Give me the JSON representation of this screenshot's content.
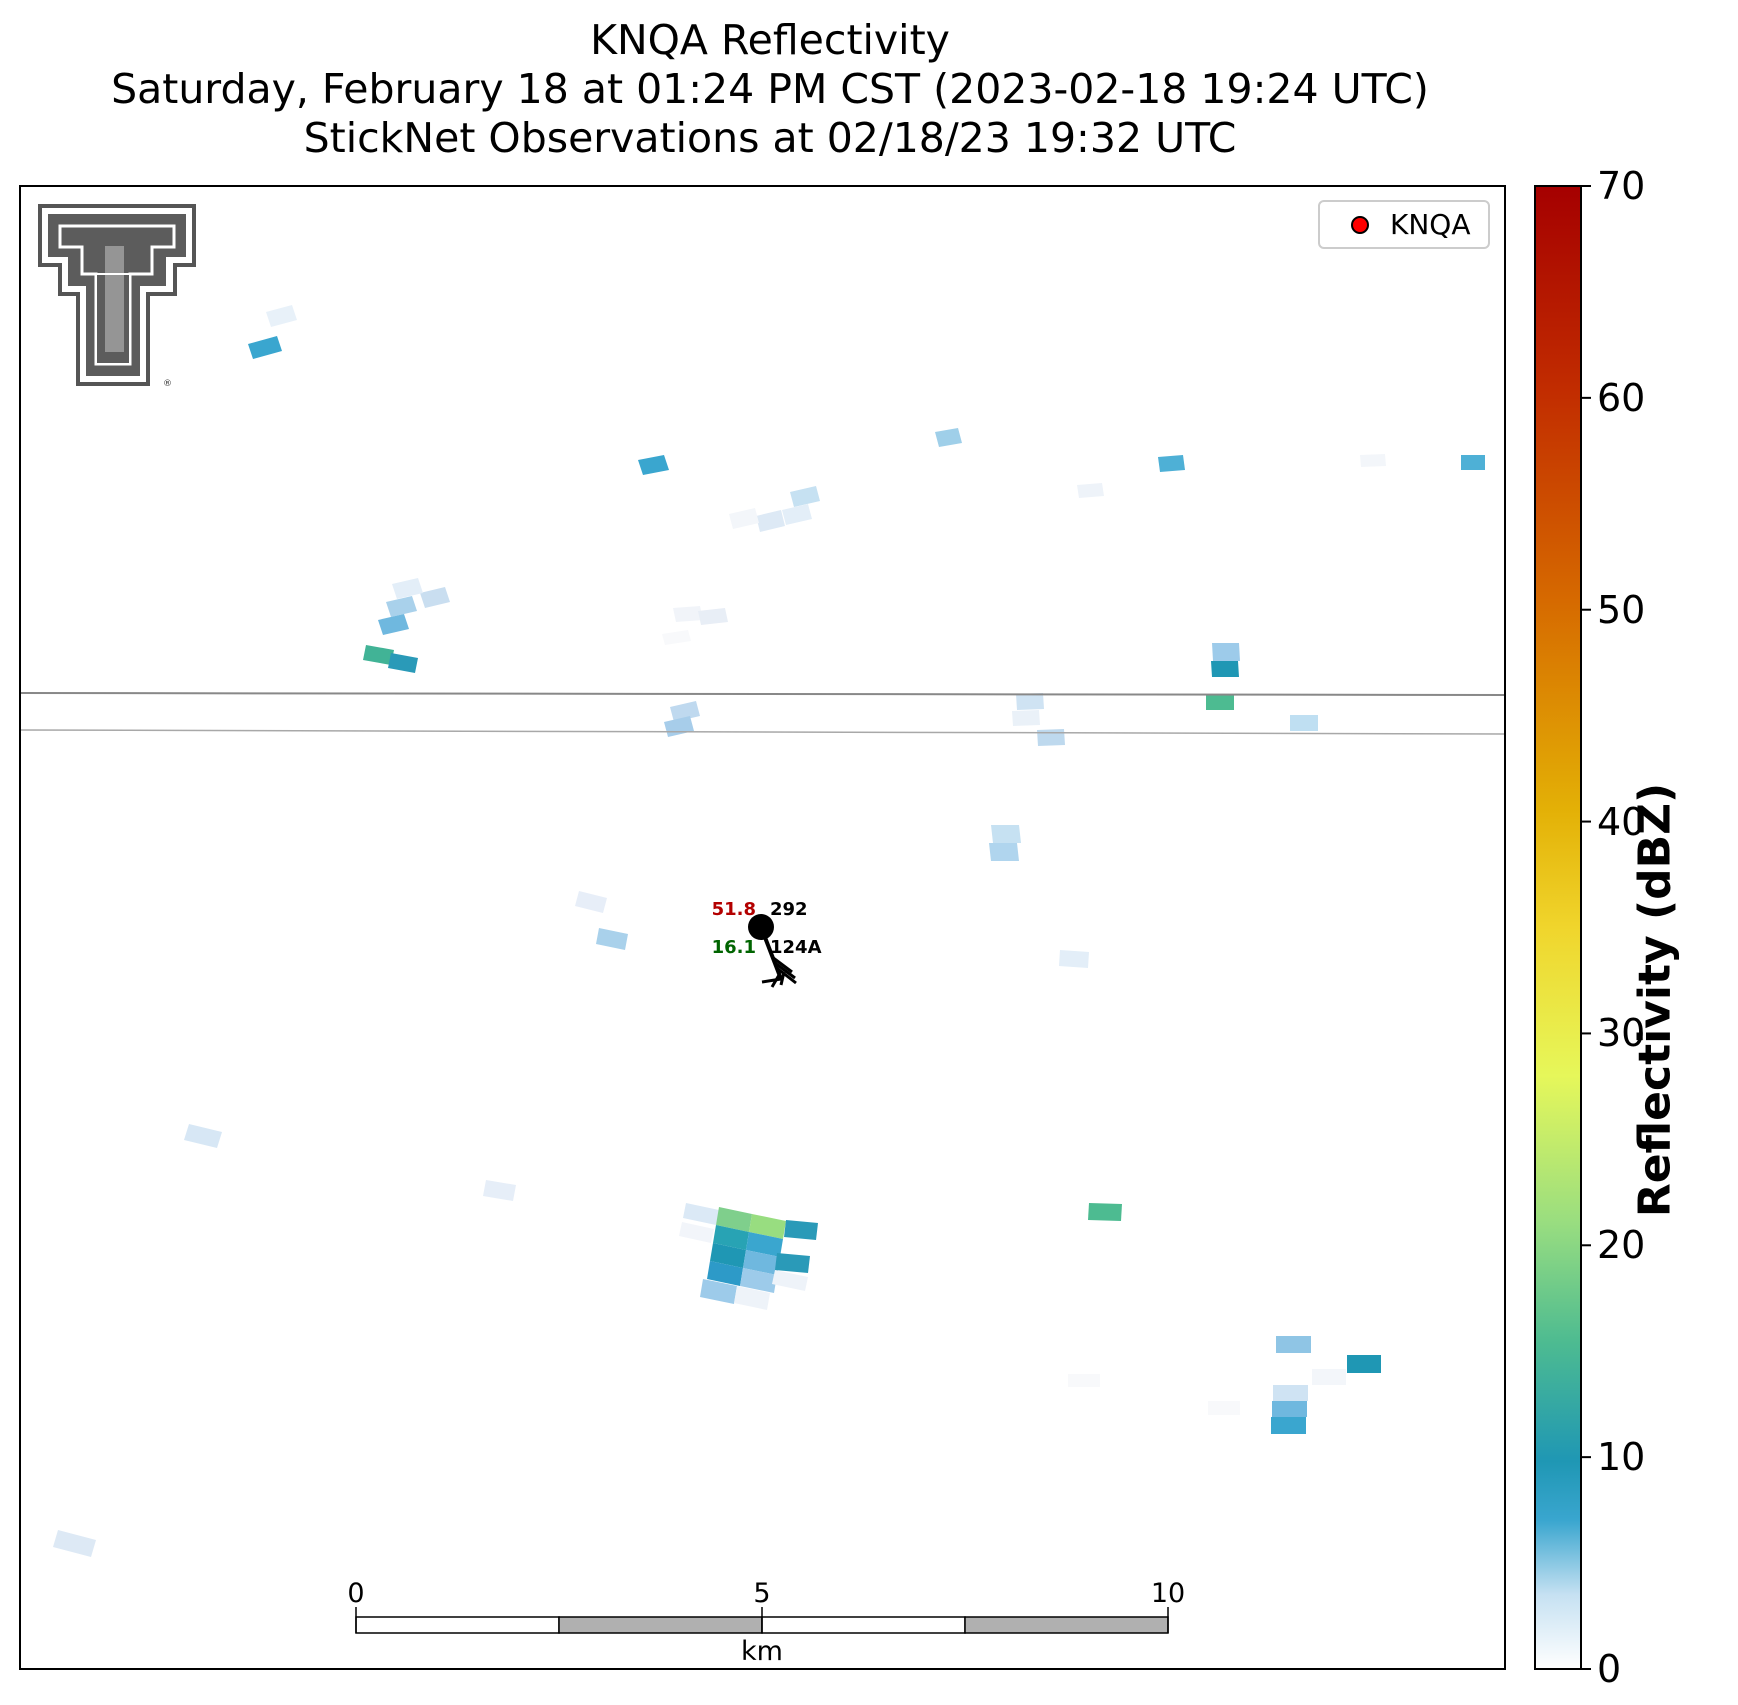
{
  "title": {
    "line1": "KNQA Reflectivity",
    "line2": "Saturday, February 18 at 01:24 PM CST (2023-02-18 19:24 UTC)",
    "line3": "StickNet Observations at 02/18/23 19:32 UTC"
  },
  "legend": {
    "marker_color": "#ff0000",
    "label": "KNQA"
  },
  "logo": {
    "icon": "texas-tech-double-t-logo",
    "mark": "®"
  },
  "station": {
    "temperature": "51.8",
    "pressure": "292",
    "dewpoint": "16.1",
    "id": "124A",
    "temperature_color": "#b30000",
    "dewpoint_color": "#006400"
  },
  "colorbar": {
    "label": "Reflectivity (dBZ)",
    "min": 0,
    "max": 70,
    "ticks": [
      "0",
      "10",
      "20",
      "30",
      "40",
      "50",
      "60",
      "70"
    ]
  },
  "scale_bar": {
    "ticks": [
      "0",
      "5",
      "10"
    ],
    "unit": "km"
  }
}
